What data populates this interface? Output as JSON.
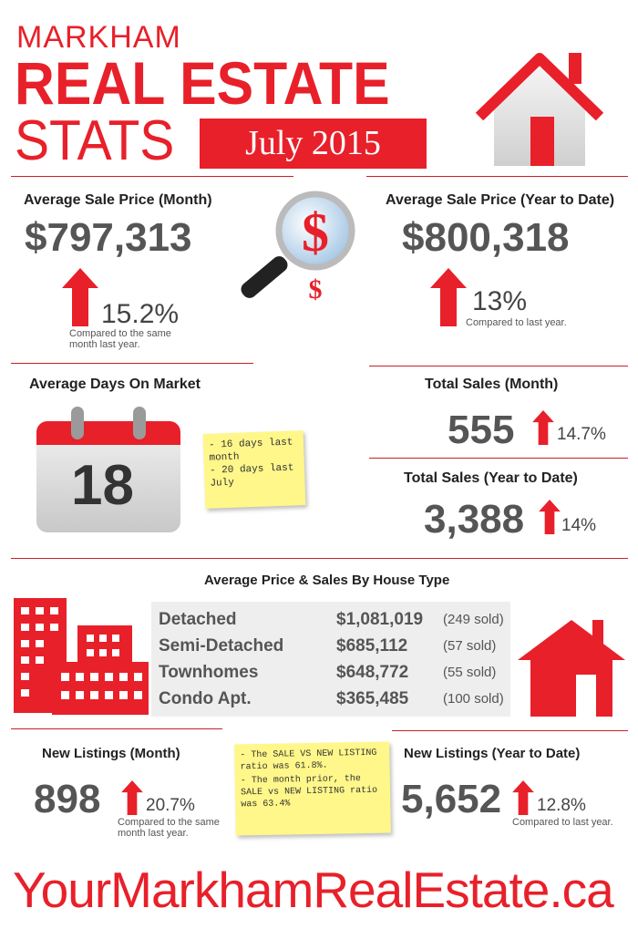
{
  "header": {
    "city": "MARKHAM",
    "title_line1": "REAL ESTATE",
    "title_line2": "STATS",
    "period": "July 2015"
  },
  "avg_price_month": {
    "title": "Average Sale Price (Month)",
    "value": "$797,313",
    "change": "15.2%",
    "note": "Compared to the same month last year."
  },
  "avg_price_ytd": {
    "title": "Average Sale Price (Year to Date)",
    "value": "$800,318",
    "change": "13%",
    "note": "Compared to last year."
  },
  "days_on_market": {
    "title": "Average Days On Market",
    "value": "18",
    "sticky_notes": [
      "- 16 days last month",
      "- 20 days last July"
    ]
  },
  "total_sales_month": {
    "title": "Total Sales (Month)",
    "value": "555",
    "change": "14.7%"
  },
  "total_sales_ytd": {
    "title": "Total Sales (Year to Date)",
    "value": "3,388",
    "change": "14%"
  },
  "house_types": {
    "title": "Average Price & Sales By House Type",
    "rows": [
      {
        "name": "Detached",
        "price": "$1,081,019",
        "sold": "(249 sold)"
      },
      {
        "name": "Semi-Detached",
        "price": "$685,112",
        "sold": "(57 sold)"
      },
      {
        "name": "Townhomes",
        "price": "$648,772",
        "sold": "(55 sold)"
      },
      {
        "name": "Condo Apt.",
        "price": "$365,485",
        "sold": "(100 sold)"
      }
    ]
  },
  "new_listings_month": {
    "title": "New Listings (Month)",
    "value": "898",
    "change": "20.7%",
    "note": "Compared to the same month last year."
  },
  "new_listings_ytd": {
    "title": "New Listings (Year to Date)",
    "value": "5,652",
    "change": "12.8%",
    "note": "Compared to last year."
  },
  "ratio_note": [
    "- The SALE VS NEW LISTING ratio was 61.8%.",
    "- The month prior, the SALE vs NEW LISTING ratio was 63.4%"
  ],
  "footer": {
    "website": "YourMarkhamRealEstate.ca"
  },
  "colors": {
    "accent": "#e8202a",
    "text": "#555555",
    "sticky": "#fff78a"
  },
  "icons": [
    "house-icon",
    "magnifier-dollar-icon",
    "calendar-icon",
    "up-arrow-icon",
    "buildings-icon"
  ]
}
